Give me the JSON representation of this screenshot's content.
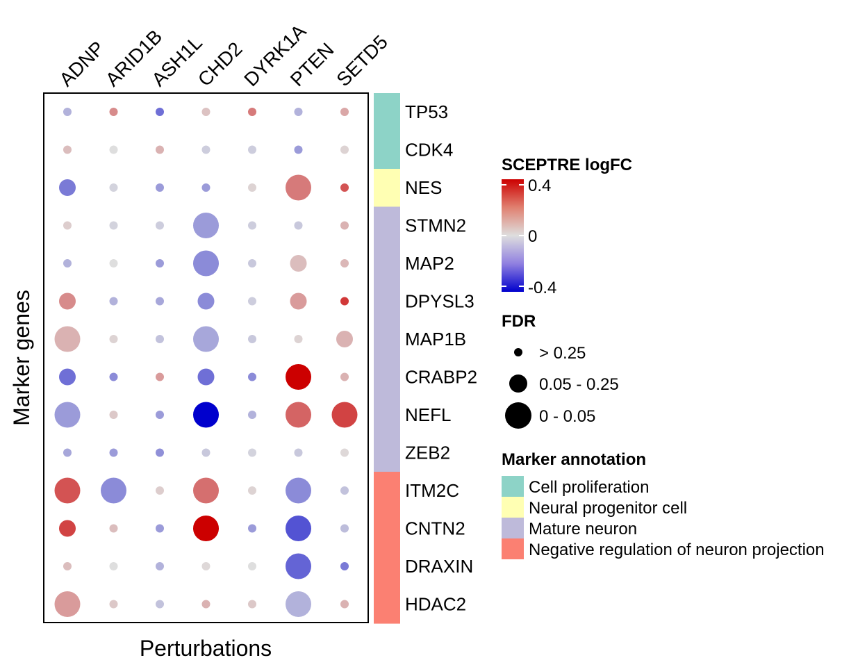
{
  "chart_data": {
    "type": "dot-heatmap",
    "xlabel": "Perturbations",
    "ylabel": "Marker genes",
    "columns": [
      "ADNP",
      "ARID1B",
      "ASH1L",
      "CHD2",
      "DYRK1A",
      "PTEN",
      "SETD5"
    ],
    "rows": [
      "TP53",
      "CDK4",
      "NES",
      "STMN2",
      "MAP2",
      "DPYSL3",
      "MAP1B",
      "CRABP2",
      "NEFL",
      "ZEB2",
      "ITM2C",
      "CNTN2",
      "DRAXIN",
      "HDAC2"
    ],
    "row_annotation": [
      "Cell proliferation",
      "Cell proliferation",
      "Neural progenitor cell",
      "Mature neuron",
      "Mature neuron",
      "Mature neuron",
      "Mature neuron",
      "Mature neuron",
      "Mature neuron",
      "Mature neuron",
      "Negative regulation of neuron projection",
      "Negative regulation of neuron projection",
      "Negative regulation of neuron projection",
      "Negative regulation of neuron projection"
    ],
    "logfc": [
      [
        -0.08,
        0.15,
        -0.2,
        0.05,
        0.18,
        -0.08,
        0.1
      ],
      [
        0.06,
        0.0,
        0.08,
        -0.03,
        -0.03,
        -0.12,
        0.02
      ],
      [
        -0.18,
        -0.02,
        -0.12,
        -0.12,
        0.02,
        0.18,
        0.25
      ],
      [
        0.03,
        -0.02,
        -0.03,
        -0.12,
        -0.03,
        -0.04,
        0.08
      ],
      [
        -0.08,
        0.0,
        -0.12,
        -0.15,
        -0.04,
        0.06,
        0.07
      ],
      [
        0.15,
        -0.08,
        -0.1,
        -0.15,
        -0.03,
        0.12,
        0.3
      ],
      [
        0.08,
        0.02,
        -0.05,
        -0.1,
        -0.04,
        0.02,
        0.08
      ],
      [
        -0.2,
        -0.15,
        0.12,
        -0.2,
        -0.15,
        0.4,
        0.08
      ],
      [
        -0.12,
        0.04,
        -0.12,
        -0.42,
        -0.08,
        0.22,
        0.28
      ],
      [
        -0.1,
        -0.12,
        -0.14,
        -0.04,
        -0.02,
        -0.04,
        0.01
      ],
      [
        0.25,
        -0.15,
        0.03,
        0.2,
        0.02,
        -0.15,
        -0.05
      ],
      [
        0.28,
        0.06,
        -0.12,
        0.4,
        -0.12,
        -0.25,
        -0.06
      ],
      [
        0.06,
        0.0,
        -0.08,
        0.01,
        0.0,
        -0.22,
        -0.18
      ],
      [
        0.12,
        0.04,
        -0.05,
        0.08,
        0.04,
        -0.08,
        0.08
      ]
    ],
    "fdr_class": [
      [
        0,
        0,
        0,
        0,
        0,
        0,
        0
      ],
      [
        0,
        0,
        0,
        0,
        0,
        0,
        0
      ],
      [
        1,
        0,
        0,
        0,
        0,
        2,
        0
      ],
      [
        0,
        0,
        0,
        2,
        0,
        0,
        0
      ],
      [
        0,
        0,
        0,
        2,
        0,
        1,
        0
      ],
      [
        1,
        0,
        0,
        1,
        0,
        1,
        0
      ],
      [
        2,
        0,
        0,
        2,
        0,
        0,
        1
      ],
      [
        1,
        0,
        0,
        1,
        0,
        2,
        0
      ],
      [
        2,
        0,
        0,
        2,
        0,
        2,
        2
      ],
      [
        0,
        0,
        0,
        0,
        0,
        0,
        0
      ],
      [
        2,
        2,
        0,
        2,
        0,
        2,
        0
      ],
      [
        1,
        0,
        0,
        2,
        0,
        2,
        0
      ],
      [
        0,
        0,
        0,
        0,
        0,
        2,
        0
      ],
      [
        2,
        0,
        0,
        0,
        0,
        2,
        0
      ]
    ],
    "color_scale": {
      "title": "SCEPTRE logFC",
      "min": -0.4,
      "max": 0.4,
      "low": "#0000cd",
      "mid": "#dedede",
      "high": "#cc0000",
      "ticks": [
        "0.4",
        "0",
        "-0.4"
      ]
    },
    "size_legend": {
      "title": "FDR",
      "labels": [
        "> 0.25",
        "0.05 - 0.25",
        "0 - 0.05"
      ]
    },
    "annotation_legend": {
      "title": "Marker annotation",
      "items": [
        {
          "label": "Cell proliferation",
          "color": "#8dd3c7"
        },
        {
          "label": "Neural progenitor cell",
          "color": "#ffffb3"
        },
        {
          "label": "Mature neuron",
          "color": "#bebada"
        },
        {
          "label": "Negative regulation of neuron projection",
          "color": "#fb8072"
        }
      ]
    },
    "grid": false,
    "legend_placement": "right"
  }
}
